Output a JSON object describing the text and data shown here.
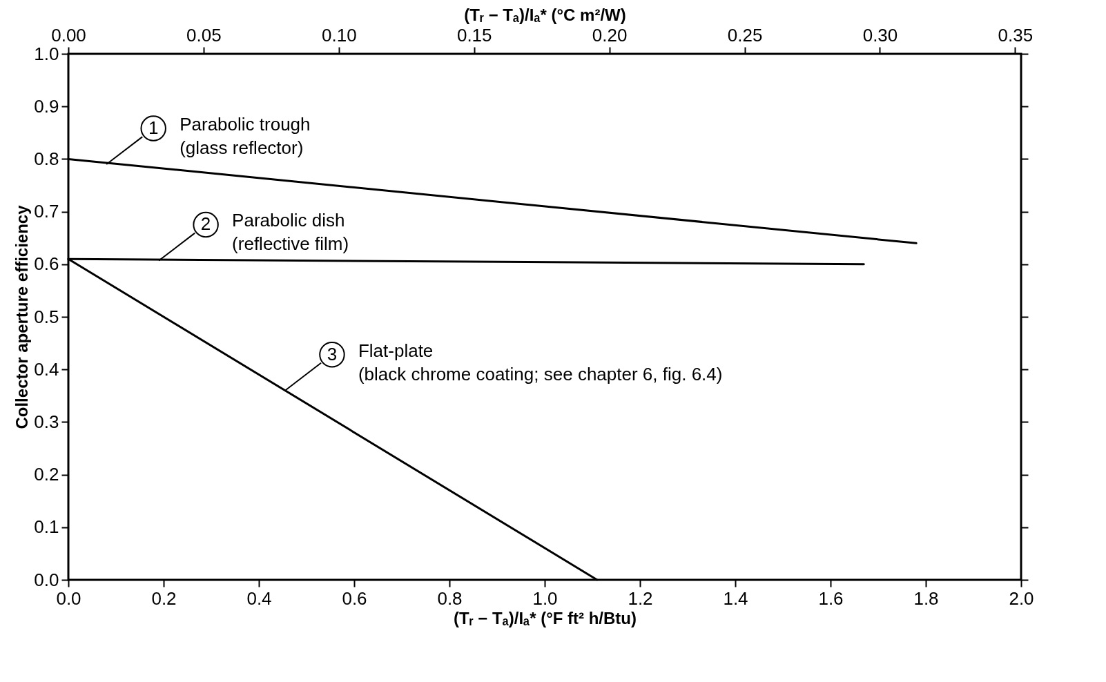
{
  "chart_data": {
    "type": "line",
    "xlabel": "(Tᵣ − Tₐ)/Iₐ* (°F ft² h/Btu)",
    "x2label": "(Tᵣ − Tₐ)/Iₐ* (°C m²/W)",
    "ylabel": "Collector aperture efficiency",
    "xlim": [
      0,
      2.0
    ],
    "xticks": [
      {
        "value": 0,
        "label": "0.0"
      },
      0.2,
      0.4,
      0.6,
      0.8,
      {
        "value": 1,
        "label": "1.0"
      },
      1.2,
      1.4,
      1.6,
      1.8,
      {
        "value": 2,
        "label": "2.0"
      }
    ],
    "x2lim": [
      0,
      0.3522
    ],
    "x2ticks": [
      {
        "value": 0,
        "label": "0.00"
      },
      0.05,
      {
        "value": 0.1,
        "label": "0.10"
      },
      0.15,
      {
        "value": 0.2,
        "label": "0.20"
      },
      0.25,
      {
        "value": 0.3,
        "label": "0.30"
      },
      0.35
    ],
    "ylim": [
      0,
      1.0
    ],
    "yticks": [
      {
        "value": 0,
        "label": "0.0"
      },
      0.1,
      0.2,
      0.3,
      0.4,
      0.5,
      0.6,
      0.7,
      0.8,
      0.9,
      {
        "value": 1,
        "label": "1.0"
      }
    ],
    "series": [
      {
        "color": "#000000",
        "x": [
          0,
          1.78
        ],
        "values": [
          0.8,
          0.64
        ]
      },
      {
        "color": "#000000",
        "x": [
          0,
          1.67
        ],
        "values": [
          0.61,
          0.6
        ]
      },
      {
        "color": "#000000",
        "x": [
          0,
          1.11
        ],
        "values": [
          0.61,
          0.0
        ]
      }
    ],
    "annotations": [
      {
        "text": "1",
        "x": 0.08,
        "y": 0.79
      },
      {
        "text": "2",
        "x": 0.19,
        "y": 0.607
      },
      {
        "text": "3",
        "x": 0.455,
        "y": 0.36
      },
      "Parabolic trough\n(glass reflector)",
      "Parabolic dish\n(reflective film)",
      "Flat-plate\n(black chrome coating; see chapter 6, fig. 6.4)"
    ],
    "grid": false,
    "legend": false,
    "marker": "none",
    "line_style": "solid"
  }
}
